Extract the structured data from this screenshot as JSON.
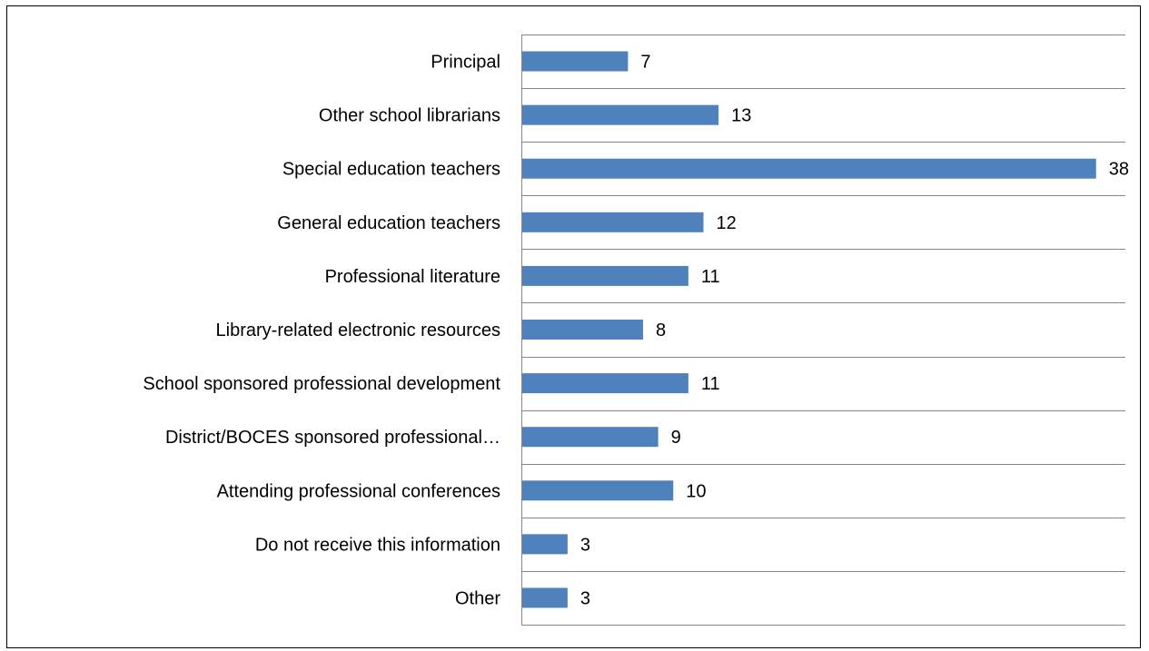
{
  "chart_data": {
    "type": "bar",
    "orientation": "horizontal",
    "categories": [
      "Principal",
      "Other school librarians",
      "Special education teachers",
      "General education teachers",
      "Professional literature",
      "Library-related electronic resources",
      "School sponsored professional development",
      "District/BOCES sponsored professional…",
      "Attending professional conferences",
      "Do not receive this information",
      "Other"
    ],
    "values": [
      7,
      13,
      38,
      12,
      11,
      8,
      11,
      9,
      10,
      3,
      3
    ],
    "xlim": [
      0,
      40
    ],
    "grid": true,
    "legend": "none",
    "bar_color": "#4F81BD",
    "title": "",
    "xlabel": "",
    "ylabel": ""
  }
}
